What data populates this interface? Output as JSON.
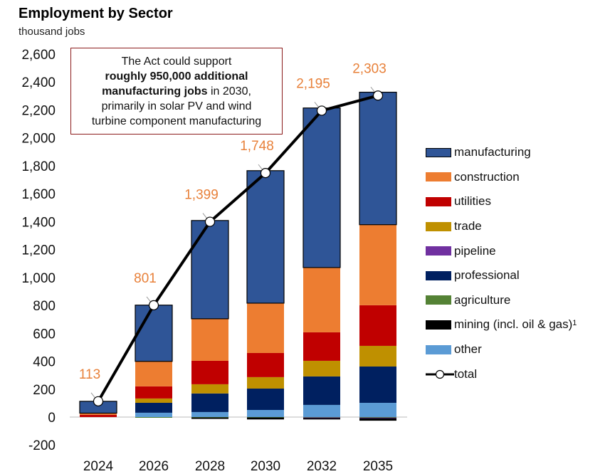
{
  "chart_data": {
    "type": "bar",
    "stacked": true,
    "title": "Employment by Sector",
    "subtitle": "thousand jobs",
    "xlabel": "",
    "ylabel": "thousand jobs",
    "ylim": [
      -200,
      2600
    ],
    "yticks": [
      -200,
      0,
      200,
      400,
      600,
      800,
      1000,
      1200,
      1400,
      1600,
      1800,
      2000,
      2200,
      2400,
      2600
    ],
    "ytick_labels": [
      "-200",
      "0",
      "200",
      "400",
      "600",
      "800",
      "1,000",
      "1,200",
      "1,400",
      "1,600",
      "1,800",
      "2,000",
      "2,200",
      "2,400",
      "2,600"
    ],
    "categories": [
      "2024",
      "2026",
      "2028",
      "2030",
      "2032",
      "2035"
    ],
    "grid": false,
    "legend_position": "right",
    "series": [
      {
        "name": "other",
        "color": "#5b9bd5",
        "values": [
          0,
          31,
          36,
          51,
          87,
          102
        ]
      },
      {
        "name": "professional",
        "color": "#002060",
        "values": [
          0,
          71,
          133,
          153,
          204,
          260
        ]
      },
      {
        "name": "trade",
        "color": "#bf9000",
        "values": [
          0,
          31,
          66,
          82,
          112,
          148
        ]
      },
      {
        "name": "utilities",
        "color": "#c00000",
        "values": [
          16,
          87,
          168,
          173,
          204,
          291
        ]
      },
      {
        "name": "construction",
        "color": "#ed7d31",
        "values": [
          12,
          179,
          301,
          357,
          464,
          577
        ]
      },
      {
        "name": "manufacturing",
        "color": "#2f5597",
        "outlined": true,
        "values": [
          85,
          403,
          704,
          949,
          1143,
          949
        ]
      },
      {
        "name": "agriculture",
        "color": "#548235",
        "values": [
          0,
          -4,
          -3,
          -3,
          -3,
          -4
        ]
      },
      {
        "name": "pipeline",
        "color": "#7030a0",
        "values": [
          0,
          0,
          0,
          0,
          -4,
          -4
        ]
      },
      {
        "name": "mining (incl. oil & gas)",
        "color": "#000000",
        "values": [
          0,
          0,
          -10,
          -14,
          -10,
          -18
        ]
      }
    ],
    "total": {
      "name": "total",
      "values": [
        113,
        801,
        1399,
        1748,
        2195,
        2303
      ],
      "labels": [
        "113",
        "801",
        "1,399",
        "1,748",
        "2,195",
        "2,303"
      ],
      "label_color": "#e8813a"
    },
    "annotation": {
      "line1": "The Act could support",
      "bold1": "roughly 950,000 additional",
      "bold2": "manufacturing jobs",
      "rest2": " in 2030,",
      "line3": "primarily in solar PV and wind",
      "line4": "turbine component manufacturing"
    },
    "legend": [
      {
        "label": "manufacturing",
        "color": "#2f5597",
        "outlined": true
      },
      {
        "label": "construction",
        "color": "#ed7d31"
      },
      {
        "label": "utilities",
        "color": "#c00000"
      },
      {
        "label": "trade",
        "color": "#bf9000"
      },
      {
        "label": "pipeline",
        "color": "#7030a0"
      },
      {
        "label": "professional",
        "color": "#002060"
      },
      {
        "label": "agriculture",
        "color": "#548235"
      },
      {
        "label": "mining (incl. oil & gas)",
        "color": "#000000",
        "footnote": "1"
      },
      {
        "label": "other",
        "color": "#5b9bd5"
      },
      {
        "label": "total",
        "type": "line-marker"
      }
    ]
  }
}
